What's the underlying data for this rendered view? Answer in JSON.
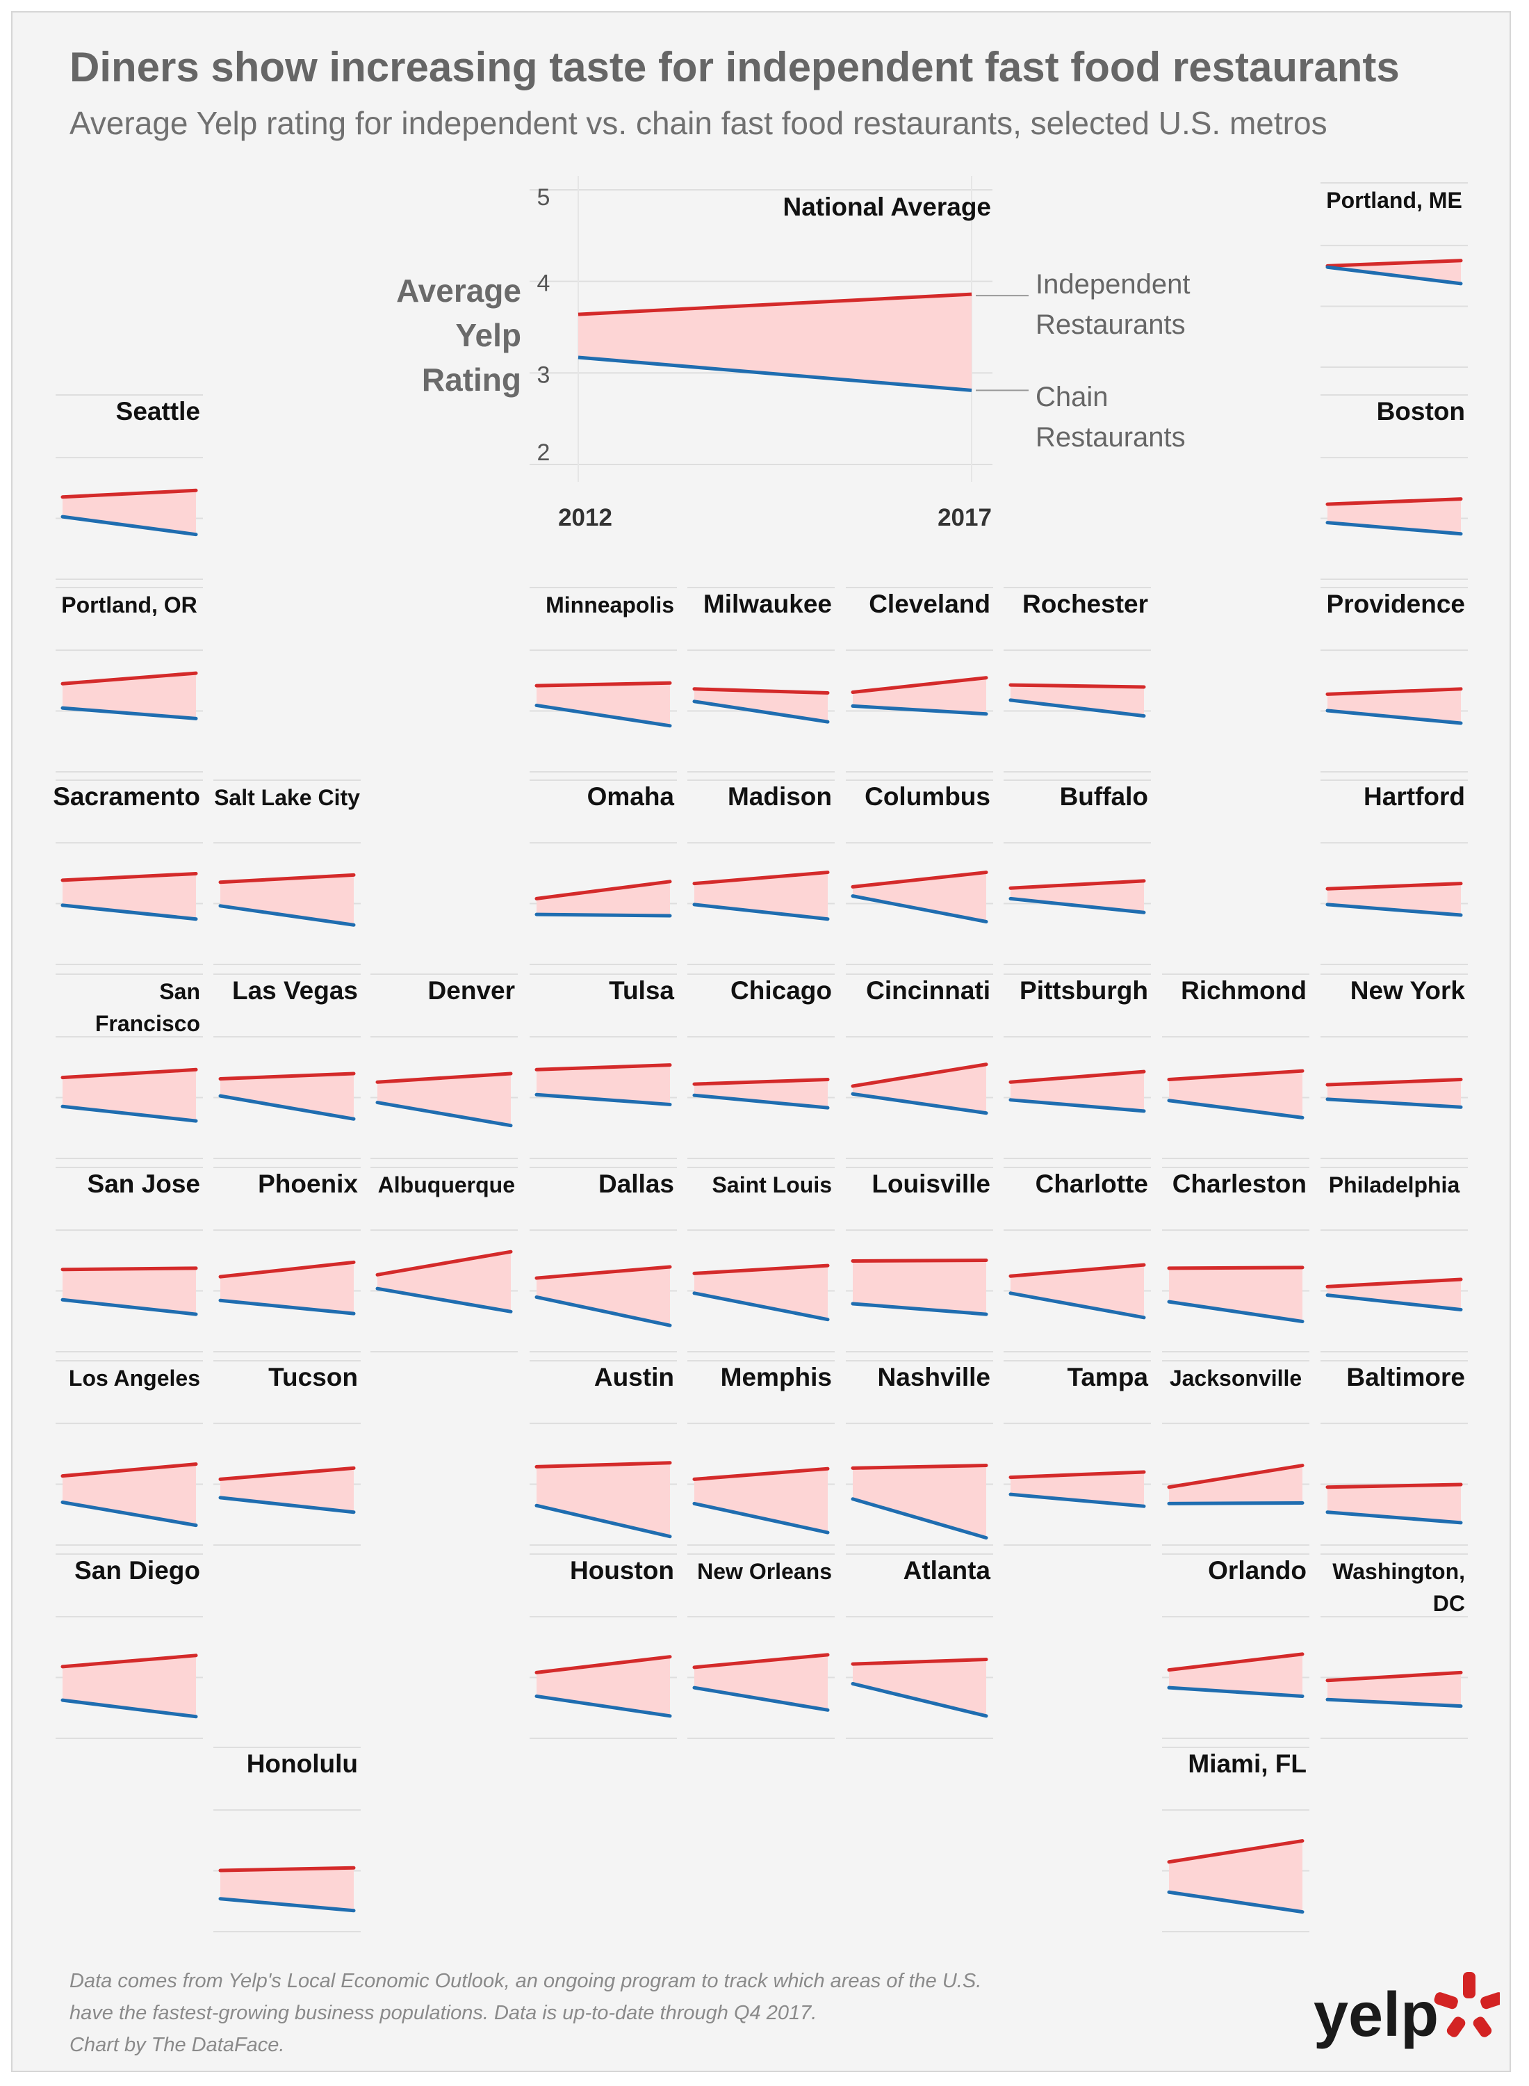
{
  "title": "Diners show increasing taste for independent fast food restaurants",
  "subtitle": "Average Yelp rating for independent vs. chain fast food restaurants, selected U.S. metros",
  "footer": {
    "line1": "Data comes from Yelp's Local Economic Outlook, an ongoing program to track which areas of the U.S.",
    "line2": "have the fastest-growing business populations. Data is up-to-date through Q4 2017.",
    "line3": "Chart by The DataFace."
  },
  "logo": {
    "text": "yelp",
    "icon": "yelp-burst-icon",
    "color": "#d32323"
  },
  "colors": {
    "independent": "#d42a2a",
    "chain": "#1f6db0",
    "fill": "#fdd5d5",
    "gridline": "#dedede"
  },
  "chart_data": {
    "type": "line",
    "x": [
      2012,
      2017
    ],
    "series_names": [
      "Independent Restaurants",
      "Chain Restaurants"
    ],
    "national": {
      "name": "National Average",
      "independent": [
        3.64,
        3.86
      ],
      "chain": [
        3.17,
        2.81
      ],
      "ylabel": [
        "Average",
        "Yelp",
        "Rating"
      ],
      "yticks": [
        2,
        3,
        4,
        5
      ],
      "xticks": [
        "2012",
        "2017"
      ],
      "ylim": [
        2,
        5
      ]
    },
    "metros": [
      {
        "name": [
          "Portland, ME"
        ],
        "independent": [
          4.04,
          4.12
        ],
        "chain": [
          4.02,
          3.77
        ]
      },
      {
        "name": [
          "Seattle"
        ],
        "independent": [
          3.75,
          3.85
        ],
        "chain": [
          3.45,
          3.18
        ]
      },
      {
        "name": [
          "Boston"
        ],
        "independent": [
          3.64,
          3.72
        ],
        "chain": [
          3.36,
          3.19
        ]
      },
      {
        "name": [
          "Portland, OR"
        ],
        "independent": [
          3.84,
          4.0
        ],
        "chain": [
          3.47,
          3.31
        ]
      },
      {
        "name": [
          "Minneapolis"
        ],
        "independent": [
          3.81,
          3.85
        ],
        "chain": [
          3.51,
          3.2
        ]
      },
      {
        "name": [
          "Milwaukee"
        ],
        "independent": [
          3.76,
          3.7
        ],
        "chain": [
          3.57,
          3.26
        ]
      },
      {
        "name": [
          "Cleveland"
        ],
        "independent": [
          3.71,
          3.93
        ],
        "chain": [
          3.5,
          3.38
        ]
      },
      {
        "name": [
          "Rochester"
        ],
        "independent": [
          3.82,
          3.79
        ],
        "chain": [
          3.59,
          3.35
        ]
      },
      {
        "name": [
          "Providence"
        ],
        "independent": [
          3.68,
          3.76
        ],
        "chain": [
          3.43,
          3.24
        ]
      },
      {
        "name": [
          "Sacramento"
        ],
        "independent": [
          3.78,
          3.88
        ],
        "chain": [
          3.4,
          3.19
        ]
      },
      {
        "name": [
          "Salt Lake City"
        ],
        "independent": [
          3.75,
          3.86
        ],
        "chain": [
          3.39,
          3.1
        ]
      },
      {
        "name": [
          "Omaha"
        ],
        "independent": [
          3.5,
          3.76
        ],
        "chain": [
          3.26,
          3.24
        ]
      },
      {
        "name": [
          "Madison"
        ],
        "independent": [
          3.73,
          3.9
        ],
        "chain": [
          3.41,
          3.19
        ]
      },
      {
        "name": [
          "Columbus"
        ],
        "independent": [
          3.68,
          3.9
        ],
        "chain": [
          3.54,
          3.15
        ]
      },
      {
        "name": [
          "Buffalo"
        ],
        "independent": [
          3.66,
          3.77
        ],
        "chain": [
          3.5,
          3.29
        ]
      },
      {
        "name": [
          "Hartford"
        ],
        "independent": [
          3.65,
          3.73
        ],
        "chain": [
          3.41,
          3.25
        ]
      },
      {
        "name": [
          "San",
          "Francisco"
        ],
        "independent": [
          3.73,
          3.85
        ],
        "chain": [
          3.29,
          3.07
        ]
      },
      {
        "name": [
          "Las Vegas"
        ],
        "independent": [
          3.71,
          3.79
        ],
        "chain": [
          3.45,
          3.1
        ]
      },
      {
        "name": [
          "Denver"
        ],
        "independent": [
          3.66,
          3.79
        ],
        "chain": [
          3.35,
          3.0
        ]
      },
      {
        "name": [
          "Tulsa"
        ],
        "independent": [
          3.85,
          3.92
        ],
        "chain": [
          3.47,
          3.32
        ]
      },
      {
        "name": [
          "Chicago"
        ],
        "independent": [
          3.63,
          3.7
        ],
        "chain": [
          3.46,
          3.27
        ]
      },
      {
        "name": [
          "Cincinnati"
        ],
        "independent": [
          3.6,
          3.93
        ],
        "chain": [
          3.48,
          3.19
        ]
      },
      {
        "name": [
          "Pittsburgh"
        ],
        "independent": [
          3.66,
          3.82
        ],
        "chain": [
          3.39,
          3.22
        ]
      },
      {
        "name": [
          "Richmond"
        ],
        "independent": [
          3.7,
          3.83
        ],
        "chain": [
          3.38,
          3.12
        ]
      },
      {
        "name": [
          "New York"
        ],
        "independent": [
          3.62,
          3.7
        ],
        "chain": [
          3.4,
          3.28
        ]
      },
      {
        "name": [
          "San Jose"
        ],
        "independent": [
          3.75,
          3.77
        ],
        "chain": [
          3.29,
          3.07
        ]
      },
      {
        "name": [
          "Phoenix"
        ],
        "independent": [
          3.64,
          3.86
        ],
        "chain": [
          3.28,
          3.08
        ]
      },
      {
        "name": [
          "Albuquerque"
        ],
        "independent": [
          3.67,
          4.02
        ],
        "chain": [
          3.46,
          3.11
        ]
      },
      {
        "name": [
          "Dallas"
        ],
        "independent": [
          3.62,
          3.79
        ],
        "chain": [
          3.33,
          2.9
        ]
      },
      {
        "name": [
          "Saint Louis"
        ],
        "independent": [
          3.69,
          3.81
        ],
        "chain": [
          3.39,
          2.99
        ]
      },
      {
        "name": [
          "Louisville"
        ],
        "independent": [
          3.88,
          3.89
        ],
        "chain": [
          3.23,
          3.07
        ]
      },
      {
        "name": [
          "Charlotte"
        ],
        "independent": [
          3.65,
          3.82
        ],
        "chain": [
          3.39,
          3.02
        ]
      },
      {
        "name": [
          "Charleston"
        ],
        "independent": [
          3.77,
          3.78
        ],
        "chain": [
          3.26,
          2.96
        ]
      },
      {
        "name": [
          "Philadelphia"
        ],
        "independent": [
          3.49,
          3.6
        ],
        "chain": [
          3.36,
          3.14
        ]
      },
      {
        "name": [
          "Los Angeles"
        ],
        "independent": [
          3.55,
          3.73
        ],
        "chain": [
          3.15,
          2.8
        ]
      },
      {
        "name": [
          "Tucson"
        ],
        "independent": [
          3.5,
          3.67
        ],
        "chain": [
          3.22,
          3.0
        ]
      },
      {
        "name": [
          "Austin"
        ],
        "independent": [
          3.69,
          3.75
        ],
        "chain": [
          3.1,
          2.63
        ]
      },
      {
        "name": [
          "Memphis"
        ],
        "independent": [
          3.5,
          3.66
        ],
        "chain": [
          3.13,
          2.69
        ]
      },
      {
        "name": [
          "Nashville"
        ],
        "independent": [
          3.67,
          3.71
        ],
        "chain": [
          3.2,
          2.61
        ]
      },
      {
        "name": [
          "Tampa"
        ],
        "independent": [
          3.53,
          3.61
        ],
        "chain": [
          3.27,
          3.09
        ]
      },
      {
        "name": [
          "Jacksonville"
        ],
        "independent": [
          3.38,
          3.71
        ],
        "chain": [
          3.13,
          3.14
        ]
      },
      {
        "name": [
          "Baltimore"
        ],
        "independent": [
          3.38,
          3.42
        ],
        "chain": [
          3.0,
          2.84
        ]
      },
      {
        "name": [
          "San Diego"
        ],
        "independent": [
          3.59,
          3.76
        ],
        "chain": [
          3.08,
          2.83
        ]
      },
      {
        "name": [
          "Houston"
        ],
        "independent": [
          3.5,
          3.74
        ],
        "chain": [
          3.14,
          2.84
        ]
      },
      {
        "name": [
          "New Orleans"
        ],
        "independent": [
          3.58,
          3.77
        ],
        "chain": [
          3.27,
          2.93
        ]
      },
      {
        "name": [
          "Atlanta"
        ],
        "independent": [
          3.63,
          3.7
        ],
        "chain": [
          3.33,
          2.84
        ]
      },
      {
        "name": [
          "Orlando"
        ],
        "independent": [
          3.54,
          3.78
        ],
        "chain": [
          3.27,
          3.14
        ]
      },
      {
        "name": [
          "Washington,",
          "DC"
        ],
        "independent": [
          3.38,
          3.5
        ],
        "chain": [
          3.09,
          2.99
        ]
      },
      {
        "name": [
          "Honolulu"
        ],
        "independent": [
          3.43,
          3.47
        ],
        "chain": [
          3.0,
          2.82
        ]
      },
      {
        "name": [
          "Miami, FL"
        ],
        "independent": [
          3.56,
          3.88
        ],
        "chain": [
          3.1,
          2.8
        ]
      }
    ]
  }
}
